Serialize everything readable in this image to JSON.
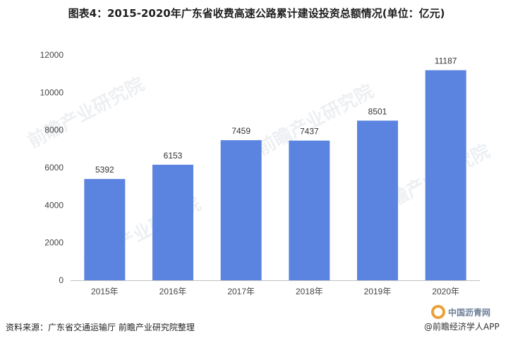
{
  "title": "图表4：2015-2020年广东省收费高速公路累计建设投资总额情况(单位：亿元)",
  "watermark_text": "前瞻产业研究院",
  "source_text": "资料来源：广东省交通运输厅 前瞻产业研究院整理",
  "logo": {
    "site": "中国沥青网",
    "app": "@前瞻经济学人APP"
  },
  "colors": {
    "bar": "#5b83e0",
    "axis": "#bfbfbf"
  },
  "chart_data": {
    "type": "bar",
    "title": "图表4：2015-2020年广东省收费高速公路累计建设投资总额情况(单位：亿元)",
    "categories": [
      "2015年",
      "2016年",
      "2017年",
      "2018年",
      "2019年",
      "2020年"
    ],
    "values": [
      5392,
      6153,
      7459,
      7437,
      8501,
      11187
    ],
    "data_labels": [
      "5392",
      "6153",
      "7459",
      "7437",
      "8501",
      "11187"
    ],
    "yticks": [
      0,
      2000,
      4000,
      6000,
      8000,
      10000,
      12000
    ],
    "ytick_labels": [
      "0",
      "2000",
      "4000",
      "6000",
      "8000",
      "10000",
      "12000"
    ],
    "ylim": [
      0,
      12000
    ],
    "xlabel": "",
    "ylabel": "",
    "grid": false,
    "legend": "none"
  }
}
